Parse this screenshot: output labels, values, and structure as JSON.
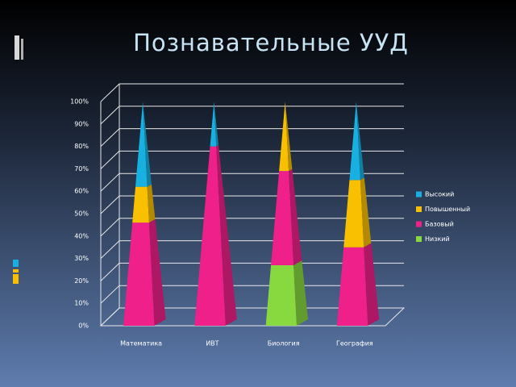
{
  "chart_data": {
    "type": "pyramid-stacked",
    "title": "Познавательные УУД",
    "categories": [
      "Математика",
      "ИВТ",
      "Биология",
      "География"
    ],
    "series": [
      {
        "name": "Высокий",
        "color": "#18b0e0",
        "values": [
          38,
          20,
          0,
          35
        ]
      },
      {
        "name": "Повышенный",
        "color": "#f8c000",
        "values": [
          16,
          0,
          31,
          30
        ]
      },
      {
        "name": "Базовый",
        "color": "#f0208a",
        "values": [
          46,
          80,
          42,
          35
        ]
      },
      {
        "name": "Низкий",
        "color": "#88d840",
        "values": [
          0,
          0,
          27,
          0
        ]
      }
    ],
    "ylim": [
      0,
      100
    ],
    "yticks": [
      {
        "value": 0,
        "label": "0%"
      },
      {
        "value": 10,
        "label": "10%"
      },
      {
        "value": 20,
        "label": "20%"
      },
      {
        "value": 30,
        "label": "30%"
      },
      {
        "value": 40,
        "label": "40%"
      },
      {
        "value": 50,
        "label": "50%"
      },
      {
        "value": 60,
        "label": "60%"
      },
      {
        "value": 70,
        "label": "70%"
      },
      {
        "value": 80,
        "label": "80%"
      },
      {
        "value": 90,
        "label": "90%"
      },
      {
        "value": 100,
        "label": "100%"
      }
    ],
    "grid": true,
    "legend": "right"
  }
}
